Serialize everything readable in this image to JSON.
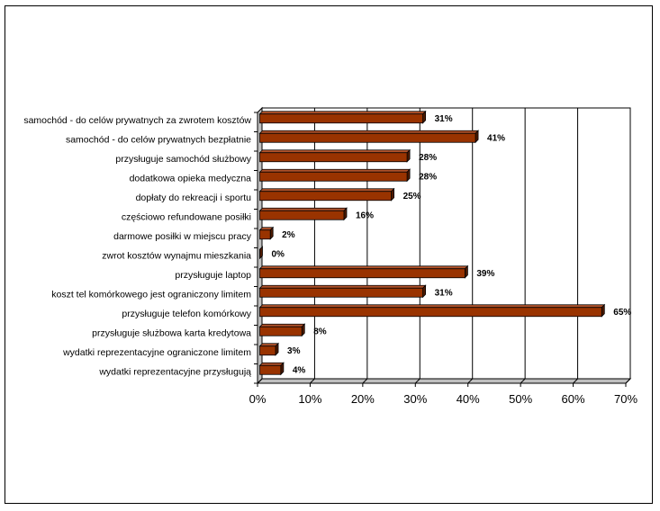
{
  "chart_data": {
    "type": "bar",
    "orientation": "horizontal",
    "three_d": true,
    "categories": [
      "samochód - do celów prywatnych za zwrotem kosztów",
      "samochód - do celów prywatnych bezpłatnie",
      "przysługuje samochód służbowy",
      "dodatkowa opieka medyczna",
      "dopłaty do rekreacji i sportu",
      "częściowo refundowane posiłki",
      "darmowe posiłki w miejscu pracy",
      "zwrot kosztów wynajmu mieszkania",
      "przysługuje laptop",
      "koszt tel komórkowego jest ograniczony limitem",
      "przysługuje telefon komórkowy",
      "przysługuje służbowa karta kredytowa",
      "wydatki reprezentacyjne ograniczone limitem",
      "wydatki reprezentacyjne przysługują"
    ],
    "values": [
      31,
      41,
      28,
      28,
      25,
      16,
      2,
      0,
      39,
      31,
      65,
      8,
      3,
      4
    ],
    "data_labels": [
      "31%",
      "41%",
      "28%",
      "28%",
      "25%",
      "16%",
      "2%",
      "0%",
      "39%",
      "31%",
      "65%",
      "8%",
      "3%",
      "4%"
    ],
    "xlim": [
      0,
      70
    ],
    "ticks": [
      "0%",
      "10%",
      "20%",
      "30%",
      "40%",
      "50%",
      "60%",
      "70%"
    ],
    "grid": true,
    "legend": "none",
    "colors": {
      "bar_front": "#993300",
      "bar_top": "#b0522a",
      "bar_side": "#4d1a00",
      "floor": "#c0c0c0",
      "grid": "#000000"
    }
  }
}
